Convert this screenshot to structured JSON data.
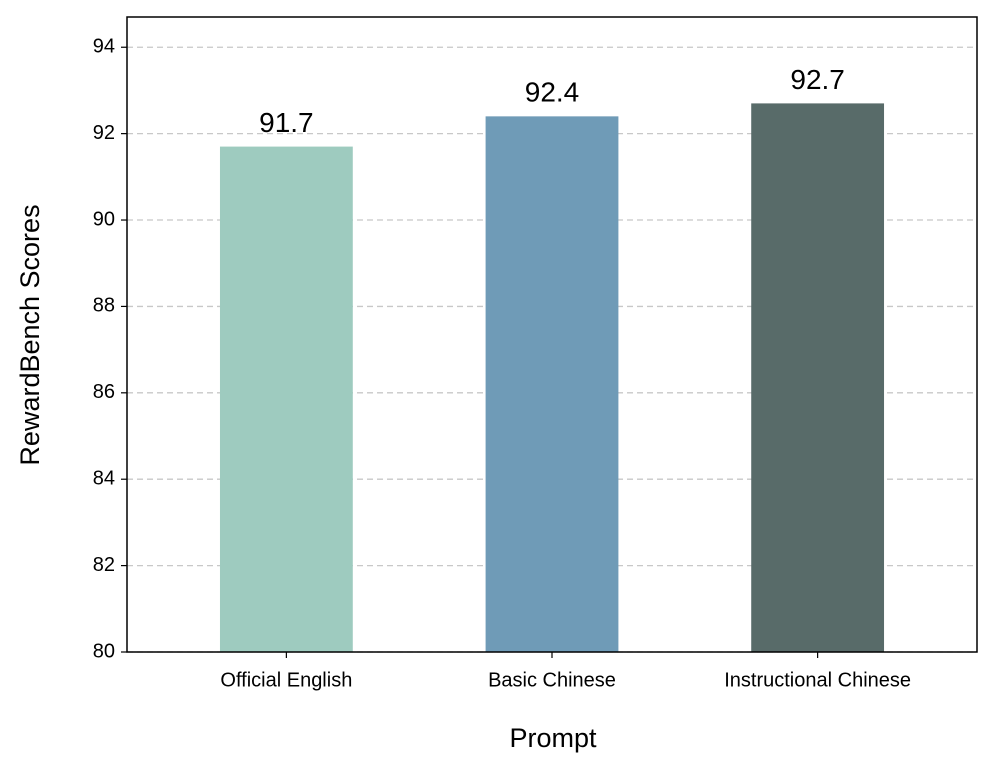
{
  "chart_data": {
    "type": "bar",
    "x_label": "Prompt",
    "y_label": "RewardBench Scores",
    "categories": [
      "Official English",
      "Basic Chinese",
      "Instructional Chinese"
    ],
    "values": [
      91.7,
      92.4,
      92.7
    ],
    "colors": [
      "#9ecbbf",
      "#6f9bb7",
      "#586b69"
    ],
    "ylim": [
      80,
      94.7
    ],
    "yticks": [
      80,
      82,
      84,
      86,
      88,
      90,
      92,
      94
    ],
    "grid": true
  }
}
